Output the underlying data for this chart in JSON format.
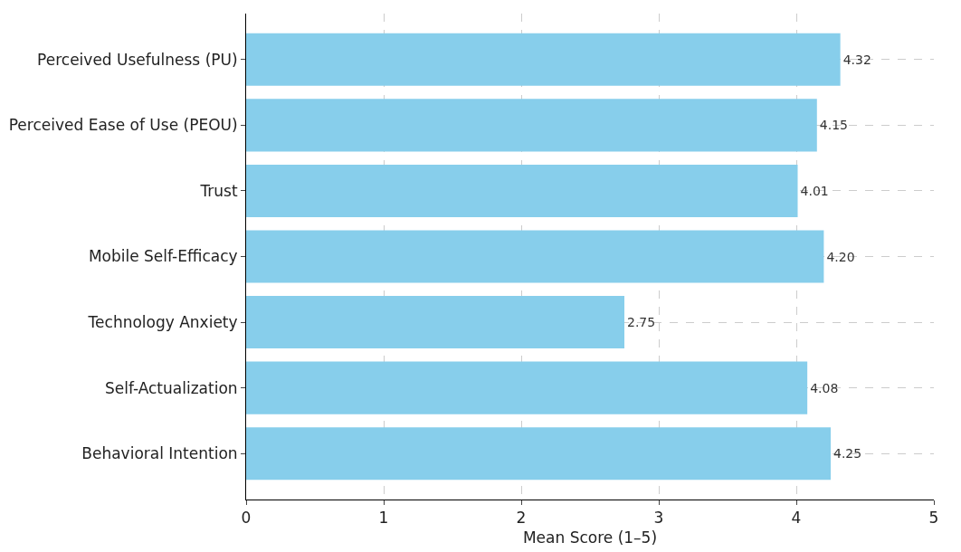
{
  "chart_data": {
    "type": "bar",
    "orientation": "horizontal",
    "xlabel": "Mean Score (1–5)",
    "categories": [
      "Perceived Usefulness (PU)",
      "Perceived Ease of Use (PEOU)",
      "Trust",
      "Mobile Self-Efficacy",
      "Technology Anxiety",
      "Self-Actualization",
      "Behavioral Intention"
    ],
    "values": [
      4.32,
      4.15,
      4.01,
      4.2,
      2.75,
      4.08,
      4.25
    ],
    "value_labels": [
      "4.32",
      "4.15",
      "4.01",
      "4.20",
      "2.75",
      "4.08",
      "4.25"
    ],
    "color": "#87ceeb",
    "xlim": [
      0,
      5
    ],
    "xticks": [
      0,
      1,
      2,
      3,
      4,
      5
    ],
    "grid": true
  }
}
